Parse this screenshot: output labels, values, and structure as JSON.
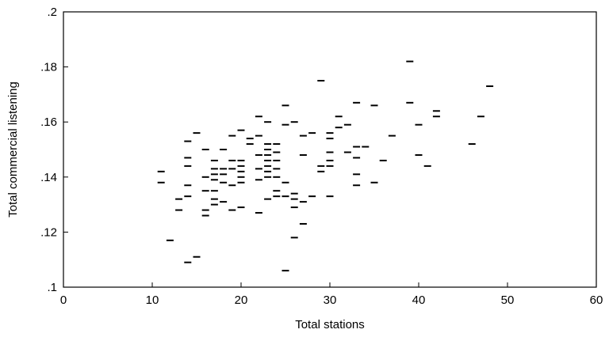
{
  "chart_data": {
    "type": "scatter",
    "xlabel": "Total stations",
    "ylabel": "Total commercial listening",
    "xlim": [
      0,
      60
    ],
    "ylim": [
      0.1,
      0.2
    ],
    "xticks": [
      0,
      10,
      20,
      30,
      40,
      50,
      60
    ],
    "xtick_labels": [
      "0",
      "10",
      "20",
      "30",
      "40",
      "50",
      "60"
    ],
    "yticks": [
      0.1,
      0.12,
      0.14,
      0.16,
      0.18,
      0.2
    ],
    "ytick_labels": [
      ".1",
      ".12",
      ".14",
      ".16",
      ".18",
      ".2"
    ],
    "grid": false,
    "marker": "horizontal-dash",
    "color": "#000000",
    "points": [
      {
        "x": 11,
        "y": 0.142
      },
      {
        "x": 11,
        "y": 0.138
      },
      {
        "x": 12,
        "y": 0.117
      },
      {
        "x": 13,
        "y": 0.132
      },
      {
        "x": 13,
        "y": 0.128
      },
      {
        "x": 14,
        "y": 0.153
      },
      {
        "x": 14,
        "y": 0.147
      },
      {
        "x": 14,
        "y": 0.144
      },
      {
        "x": 14,
        "y": 0.137
      },
      {
        "x": 14,
        "y": 0.133
      },
      {
        "x": 14,
        "y": 0.109
      },
      {
        "x": 15,
        "y": 0.156
      },
      {
        "x": 15,
        "y": 0.111
      },
      {
        "x": 16,
        "y": 0.15
      },
      {
        "x": 16,
        "y": 0.14
      },
      {
        "x": 16,
        "y": 0.135
      },
      {
        "x": 16,
        "y": 0.128
      },
      {
        "x": 16,
        "y": 0.126
      },
      {
        "x": 17,
        "y": 0.146
      },
      {
        "x": 17,
        "y": 0.143
      },
      {
        "x": 17,
        "y": 0.141
      },
      {
        "x": 17,
        "y": 0.139
      },
      {
        "x": 17,
        "y": 0.135
      },
      {
        "x": 17,
        "y": 0.132
      },
      {
        "x": 17,
        "y": 0.13
      },
      {
        "x": 18,
        "y": 0.15
      },
      {
        "x": 18,
        "y": 0.143
      },
      {
        "x": 18,
        "y": 0.141
      },
      {
        "x": 18,
        "y": 0.138
      },
      {
        "x": 18,
        "y": 0.131
      },
      {
        "x": 19,
        "y": 0.155
      },
      {
        "x": 19,
        "y": 0.146
      },
      {
        "x": 19,
        "y": 0.143
      },
      {
        "x": 19,
        "y": 0.137
      },
      {
        "x": 19,
        "y": 0.128
      },
      {
        "x": 20,
        "y": 0.157
      },
      {
        "x": 20,
        "y": 0.146
      },
      {
        "x": 20,
        "y": 0.144
      },
      {
        "x": 20,
        "y": 0.142
      },
      {
        "x": 20,
        "y": 0.14
      },
      {
        "x": 20,
        "y": 0.138
      },
      {
        "x": 20,
        "y": 0.129
      },
      {
        "x": 21,
        "y": 0.154
      },
      {
        "x": 21,
        "y": 0.152
      },
      {
        "x": 22,
        "y": 0.162
      },
      {
        "x": 22,
        "y": 0.155
      },
      {
        "x": 22,
        "y": 0.148
      },
      {
        "x": 22,
        "y": 0.143
      },
      {
        "x": 22,
        "y": 0.139
      },
      {
        "x": 22,
        "y": 0.127
      },
      {
        "x": 23,
        "y": 0.16
      },
      {
        "x": 23,
        "y": 0.152
      },
      {
        "x": 23,
        "y": 0.15
      },
      {
        "x": 23,
        "y": 0.148
      },
      {
        "x": 23,
        "y": 0.146
      },
      {
        "x": 23,
        "y": 0.144
      },
      {
        "x": 23,
        "y": 0.142
      },
      {
        "x": 23,
        "y": 0.14
      },
      {
        "x": 23,
        "y": 0.132
      },
      {
        "x": 24,
        "y": 0.152
      },
      {
        "x": 24,
        "y": 0.149
      },
      {
        "x": 24,
        "y": 0.146
      },
      {
        "x": 24,
        "y": 0.143
      },
      {
        "x": 24,
        "y": 0.14
      },
      {
        "x": 24,
        "y": 0.135
      },
      {
        "x": 24,
        "y": 0.133
      },
      {
        "x": 25,
        "y": 0.166
      },
      {
        "x": 25,
        "y": 0.159
      },
      {
        "x": 25,
        "y": 0.138
      },
      {
        "x": 25,
        "y": 0.133
      },
      {
        "x": 25,
        "y": 0.106
      },
      {
        "x": 26,
        "y": 0.16
      },
      {
        "x": 26,
        "y": 0.134
      },
      {
        "x": 26,
        "y": 0.132
      },
      {
        "x": 26,
        "y": 0.129
      },
      {
        "x": 26,
        "y": 0.118
      },
      {
        "x": 27,
        "y": 0.155
      },
      {
        "x": 27,
        "y": 0.148
      },
      {
        "x": 27,
        "y": 0.131
      },
      {
        "x": 27,
        "y": 0.123
      },
      {
        "x": 28,
        "y": 0.156
      },
      {
        "x": 28,
        "y": 0.133
      },
      {
        "x": 29,
        "y": 0.175
      },
      {
        "x": 29,
        "y": 0.144
      },
      {
        "x": 29,
        "y": 0.142
      },
      {
        "x": 30,
        "y": 0.156
      },
      {
        "x": 30,
        "y": 0.154
      },
      {
        "x": 30,
        "y": 0.149
      },
      {
        "x": 30,
        "y": 0.146
      },
      {
        "x": 30,
        "y": 0.144
      },
      {
        "x": 30,
        "y": 0.133
      },
      {
        "x": 31,
        "y": 0.162
      },
      {
        "x": 31,
        "y": 0.158
      },
      {
        "x": 32,
        "y": 0.159
      },
      {
        "x": 32,
        "y": 0.149
      },
      {
        "x": 33,
        "y": 0.167
      },
      {
        "x": 33,
        "y": 0.151
      },
      {
        "x": 33,
        "y": 0.147
      },
      {
        "x": 33,
        "y": 0.141
      },
      {
        "x": 33,
        "y": 0.137
      },
      {
        "x": 34,
        "y": 0.151
      },
      {
        "x": 35,
        "y": 0.166
      },
      {
        "x": 35,
        "y": 0.138
      },
      {
        "x": 36,
        "y": 0.146
      },
      {
        "x": 37,
        "y": 0.155
      },
      {
        "x": 39,
        "y": 0.182
      },
      {
        "x": 39,
        "y": 0.167
      },
      {
        "x": 40,
        "y": 0.159
      },
      {
        "x": 40,
        "y": 0.148
      },
      {
        "x": 41,
        "y": 0.144
      },
      {
        "x": 42,
        "y": 0.164
      },
      {
        "x": 42,
        "y": 0.162
      },
      {
        "x": 46,
        "y": 0.152
      },
      {
        "x": 47,
        "y": 0.162
      },
      {
        "x": 48,
        "y": 0.173
      }
    ]
  }
}
